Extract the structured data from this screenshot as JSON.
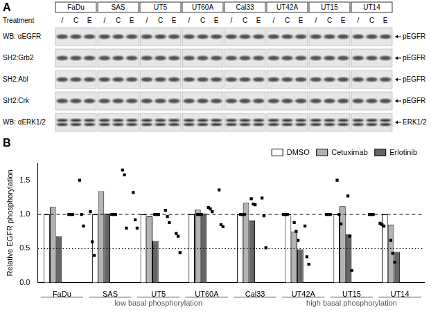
{
  "panel_a": {
    "label": "A",
    "treatment_label": "Treatment",
    "cell_lines": [
      "FaDu",
      "SAS",
      "UT5",
      "UT60A",
      "Cal33",
      "UT42A",
      "UT15",
      "UT14"
    ],
    "treatments": [
      "/",
      "C",
      "E"
    ],
    "rows": [
      {
        "label": "WB: αEGFR",
        "band": "pEGFR"
      },
      {
        "label": "SH2:Grb2",
        "band": "pEGFR"
      },
      {
        "label": "SH2:Abl",
        "band": "pEGFR"
      },
      {
        "label": "SH2:Crk",
        "band": "pEGFR"
      },
      {
        "label": "WB: αERK1/2",
        "band": "ERK1/2"
      }
    ]
  },
  "chart_data": {
    "panel_label": "B",
    "type": "bar",
    "y_label": "Relative EGFR phosphorylation",
    "categories": [
      "FaDu",
      "SAS",
      "UT5",
      "UT60A",
      "Cal33",
      "UT42A",
      "UT15",
      "UT14"
    ],
    "series": [
      {
        "name": "DMSO",
        "color": "#ffffff",
        "values": [
          1,
          1,
          1,
          1,
          1,
          1,
          1,
          1
        ],
        "points": [
          [
            1,
            1,
            1
          ],
          [
            1,
            1,
            1
          ],
          [
            1,
            1,
            1
          ],
          [
            1,
            1,
            1
          ],
          [
            1,
            1,
            1
          ],
          [
            1,
            1,
            1
          ],
          [
            1,
            1,
            1
          ],
          [
            1,
            1,
            1
          ]
        ]
      },
      {
        "name": "Cetuximab",
        "color": "#b3b3b3",
        "values": [
          1.11,
          1.34,
          0.97,
          1.07,
          1.17,
          0.75,
          1.12,
          0.85
        ],
        "points": [
          [
            1.5,
            1.0,
            0.83
          ],
          [
            1.65,
            1.58,
            0.8
          ],
          [
            1.06,
            0.97,
            0.88
          ],
          [
            1.1,
            1.08,
            1.04
          ],
          [
            1.23,
            1.15,
            1.14
          ],
          [
            0.88,
            0.75,
            0.62
          ],
          [
            1.5,
            1.0,
            0.86
          ],
          [
            0.87,
            0.85,
            0.83
          ]
        ]
      },
      {
        "name": "Erlotinib",
        "color": "#666666",
        "values": [
          0.68,
          1.01,
          0.61,
          1.01,
          0.91,
          0.49,
          0.71,
          0.45
        ],
        "points": [
          [
            1.04,
            0.6,
            0.4
          ],
          [
            1.32,
            0.92,
            0.8
          ],
          [
            0.72,
            0.68,
            0.44
          ],
          [
            1.36,
            0.85,
            0.82
          ],
          [
            1.24,
            0.98,
            0.51
          ],
          [
            0.83,
            0.38,
            0.27
          ],
          [
            1.27,
            0.68,
            0.18
          ],
          [
            0.62,
            0.43,
            0.3
          ]
        ]
      }
    ],
    "marker": "square",
    "ylim": [
      0,
      1.75
    ],
    "yticks": [
      {
        "value": 0,
        "label": "0.0"
      },
      0.5,
      {
        "value": 1,
        "label": "1.0"
      },
      1.5
    ],
    "reference_lines": [
      {
        "value": 1,
        "line_style": "dashed"
      },
      {
        "value": 0.5,
        "line_style": "dotted"
      }
    ],
    "groups": [
      {
        "label": "low basal phosphorylation",
        "categories": [
          "FaDu",
          "SAS",
          "UT5",
          "UT60A",
          "Cal33"
        ]
      },
      {
        "label": "high basal phosphorylation",
        "categories": [
          "UT42A",
          "UT15",
          "UT14"
        ]
      }
    ],
    "grid": false,
    "legend": "top-right"
  }
}
